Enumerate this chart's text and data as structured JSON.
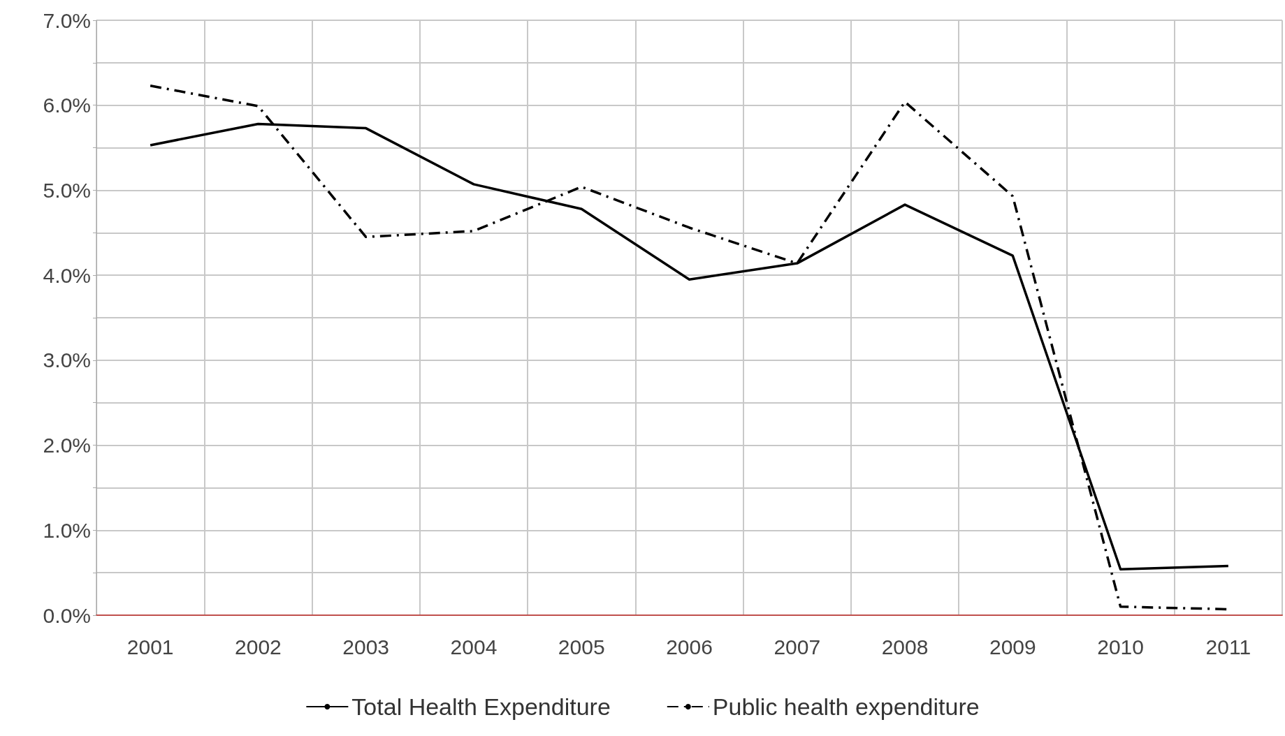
{
  "chart_data": {
    "type": "line",
    "categories": [
      "2001",
      "2002",
      "2003",
      "2004",
      "2005",
      "2006",
      "2007",
      "2008",
      "2009",
      "2010",
      "2011"
    ],
    "series": [
      {
        "name": "Total Health Expenditure",
        "color": "#000000",
        "line_style": "solid",
        "values": [
          5.53,
          5.78,
          5.73,
          5.07,
          4.78,
          3.95,
          4.14,
          4.83,
          4.23,
          0.54,
          0.58
        ]
      },
      {
        "name": "Public health expenditure",
        "color": "#000000",
        "line_style": "dashed",
        "values": [
          6.23,
          5.99,
          4.45,
          4.52,
          5.04,
          4.56,
          4.14,
          6.04,
          4.93,
          0.1,
          0.07
        ]
      }
    ],
    "ylim": [
      0,
      7
    ],
    "yticks": [
      {
        "value": 0,
        "label": "0.0%"
      },
      {
        "value": 0.5,
        "label": null
      },
      {
        "value": 1,
        "label": "1.0%"
      },
      {
        "value": 1.5,
        "label": null
      },
      {
        "value": 2,
        "label": "2.0%"
      },
      {
        "value": 2.5,
        "label": null
      },
      {
        "value": 3,
        "label": "3.0%"
      },
      {
        "value": 3.5,
        "label": null
      },
      {
        "value": 4,
        "label": "4.0%"
      },
      {
        "value": 4.5,
        "label": null
      },
      {
        "value": 5,
        "label": "5.0%"
      },
      {
        "value": 5.5,
        "label": null
      },
      {
        "value": 6,
        "label": "6.0%"
      },
      {
        "value": 6.5,
        "label": null
      },
      {
        "value": 7,
        "label": "7.0%"
      }
    ],
    "grid": true,
    "legend": "bottom",
    "marker": "none"
  }
}
